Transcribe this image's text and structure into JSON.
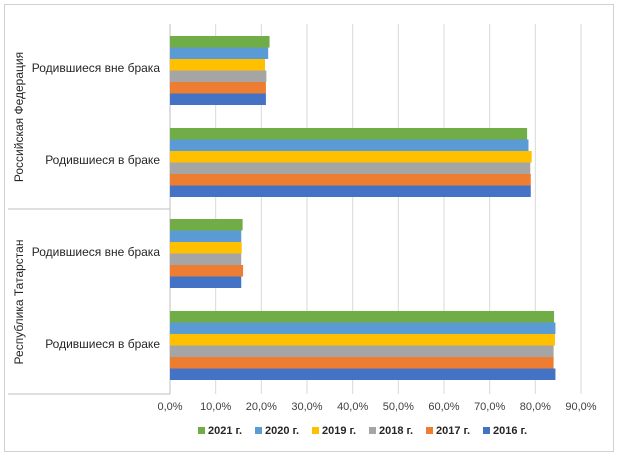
{
  "chart_data": {
    "type": "bar",
    "orientation": "horizontal",
    "groups": [
      {
        "label": "Российская Федерация",
        "categories": [
          "Родившиеся вне брака",
          "Родившиеся в браке"
        ]
      },
      {
        "label": "Республика Татарстан",
        "categories": [
          "Родившиеся вне брака",
          "Родившиеся в браке"
        ]
      }
    ],
    "categories": [
      "Российская Федерация / Родившиеся вне брака",
      "Российская Федерация / Родившиеся в браке",
      "Республика Татарстан / Родившиеся вне брака",
      "Республика Татарстан / Родившиеся в браке"
    ],
    "series": [
      {
        "name": "2021 г.",
        "color": "#70ad47",
        "values": [
          21.8,
          78.2,
          15.9,
          84.1
        ]
      },
      {
        "name": "2020 г.",
        "color": "#5b9bd5",
        "values": [
          21.5,
          78.5,
          15.6,
          84.4
        ]
      },
      {
        "name": "2019 г.",
        "color": "#ffc000",
        "values": [
          20.8,
          79.2,
          15.7,
          84.3
        ]
      },
      {
        "name": "2018 г.",
        "color": "#a5a5a5",
        "values": [
          21.1,
          78.9,
          15.6,
          84.0
        ]
      },
      {
        "name": "2017 г.",
        "color": "#ed7d31",
        "values": [
          21.0,
          79.0,
          16.0,
          84.0
        ]
      },
      {
        "name": "2016 г.",
        "color": "#4472c4",
        "values": [
          21.0,
          79.0,
          15.6,
          84.4
        ]
      }
    ],
    "xlim": [
      0,
      90
    ],
    "xticks": [
      "0,0%",
      "10,0%",
      "20,0%",
      "30,0%",
      "40,0%",
      "50,0%",
      "60,0%",
      "70,0%",
      "80,0%",
      "90,0%"
    ],
    "grid": true,
    "legend_position": "bottom"
  }
}
